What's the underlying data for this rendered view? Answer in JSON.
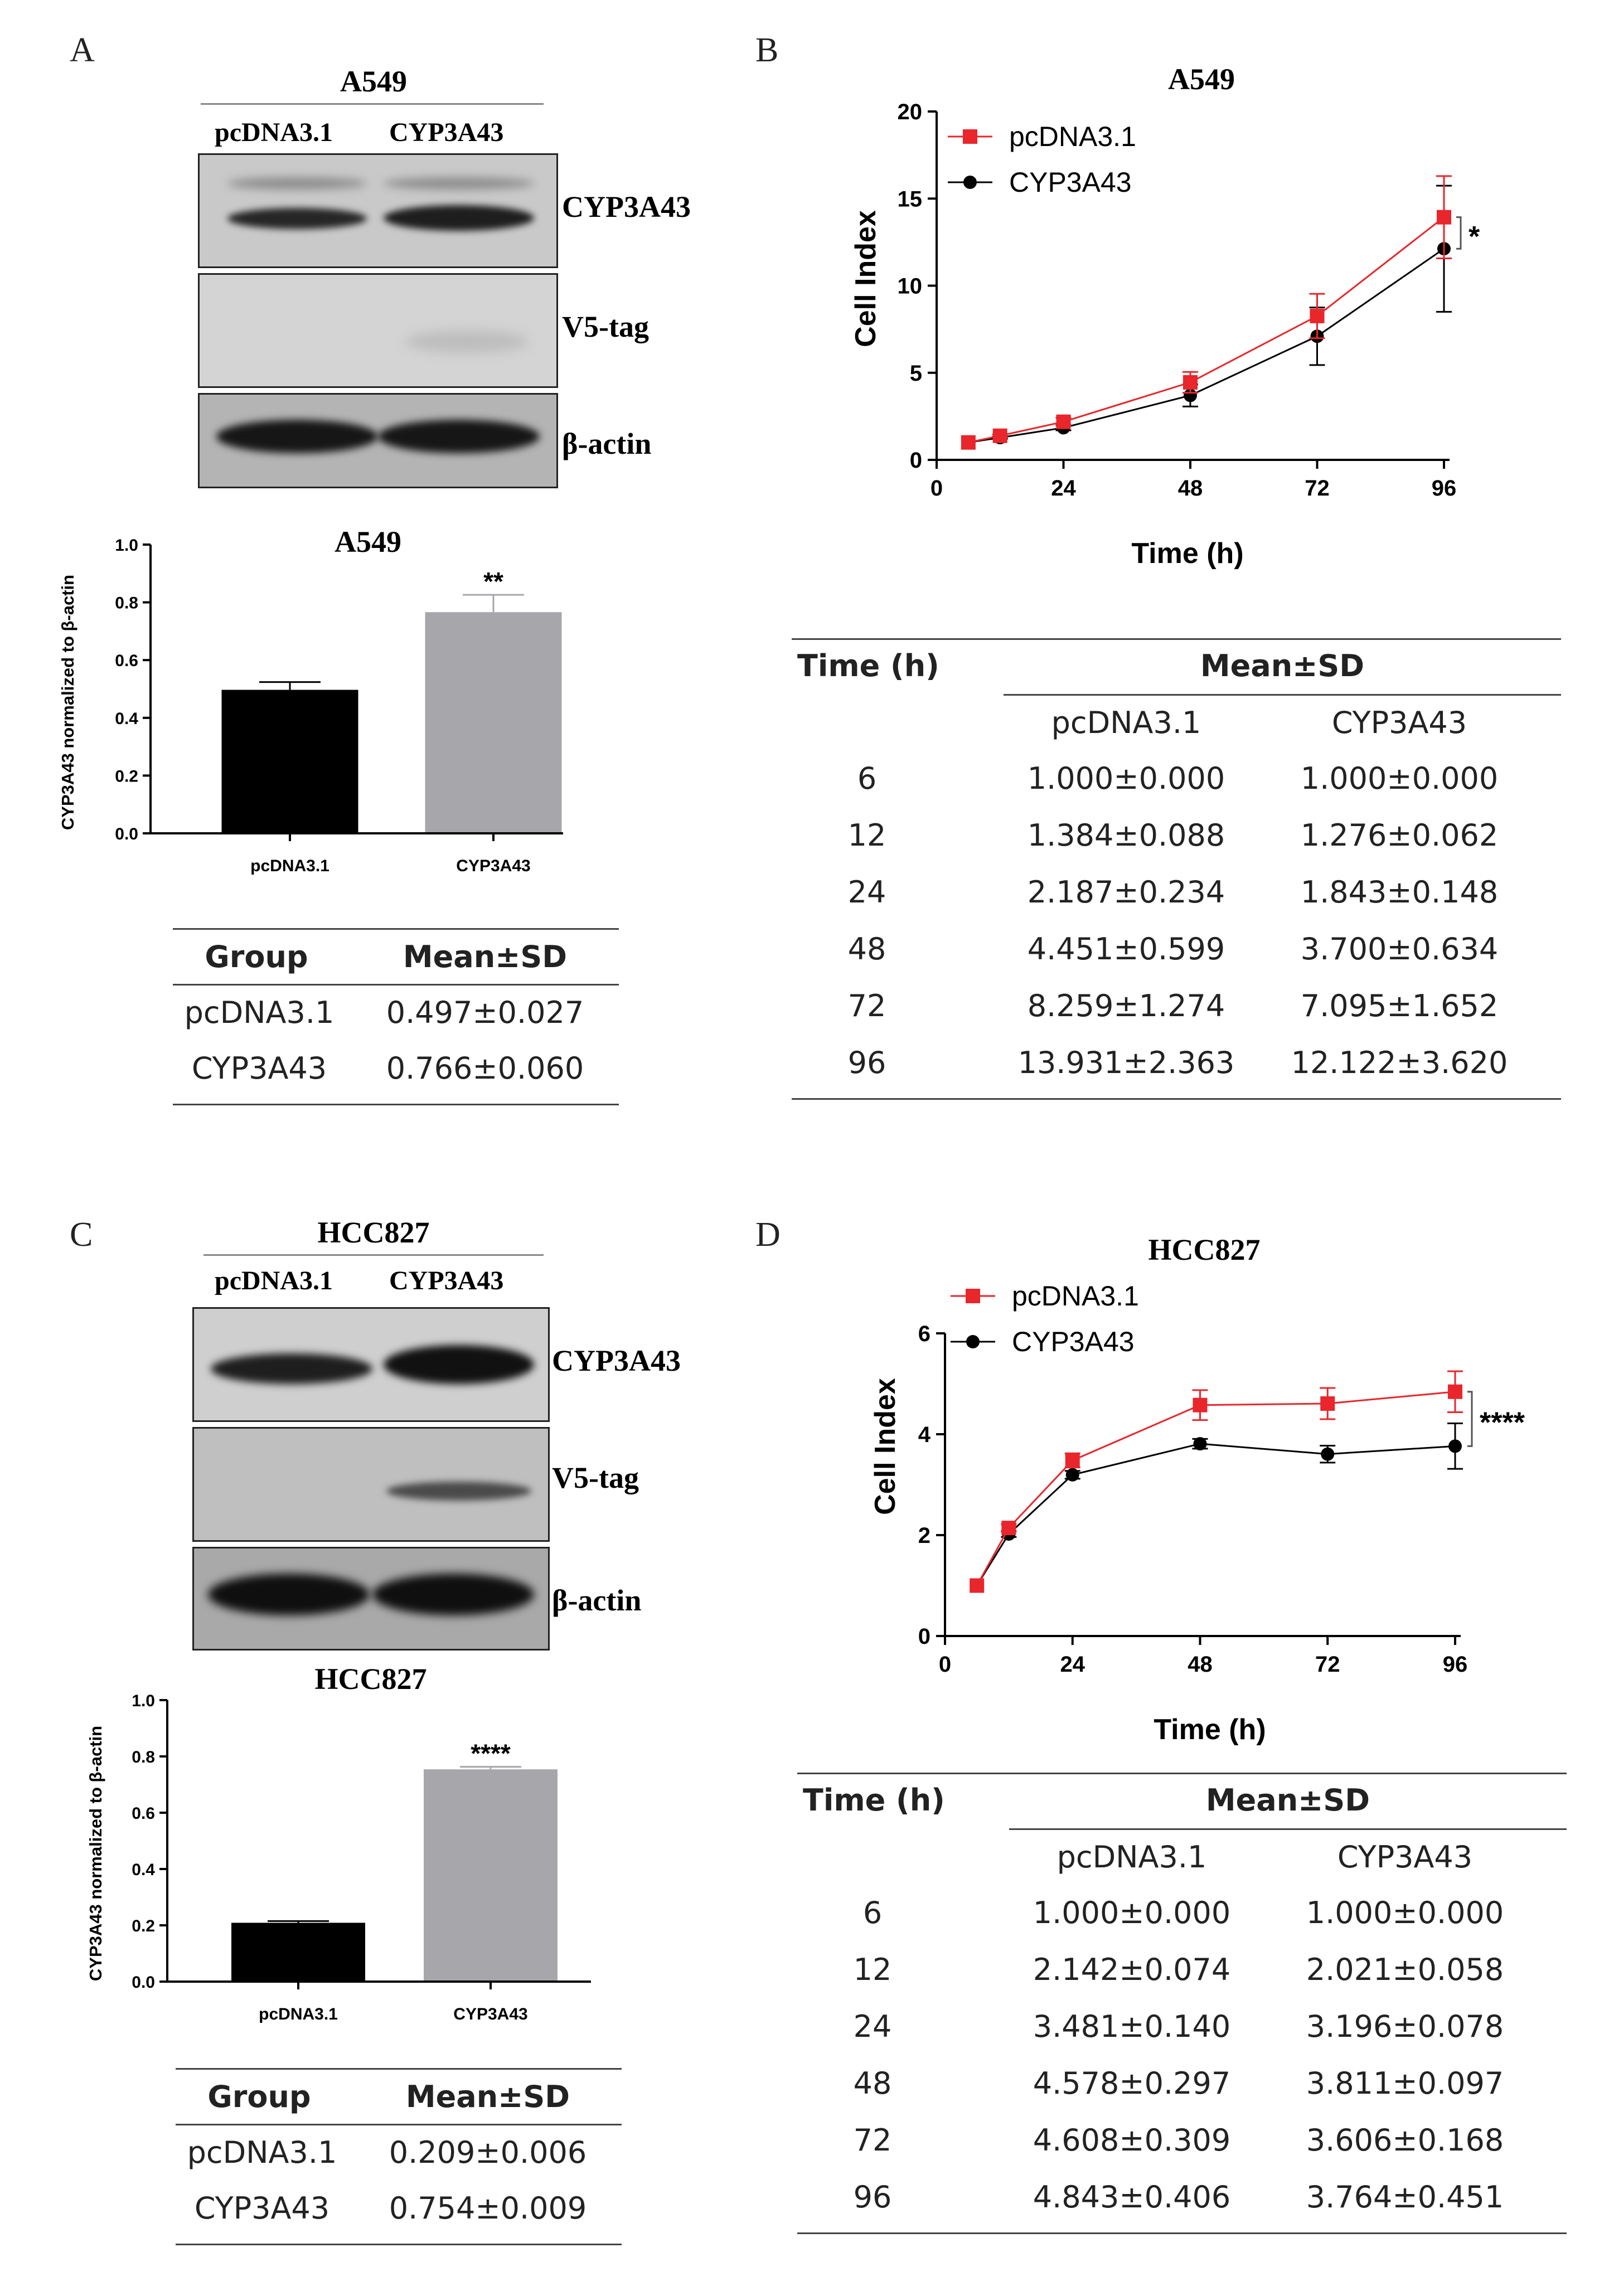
{
  "chart_data": [
    {
      "panel": "A",
      "type": "bar",
      "title": "A549",
      "ylabel": "CYP3A43 normalized to β-actin",
      "categories": [
        "pcDNA3.1",
        "CYP3A43"
      ],
      "values": [
        0.497,
        0.766
      ],
      "errors": [
        0.027,
        0.06
      ],
      "colors": [
        "#000000",
        "#a6a6ab"
      ],
      "ylim": [
        0,
        1.0
      ],
      "yticks": [
        "0.0",
        "0.2",
        "0.4",
        "0.6",
        "0.8",
        "1.0"
      ],
      "significance": "**",
      "blot": {
        "title": "A549",
        "lanes": [
          "pcDNA3.1",
          "CYP3A43"
        ],
        "bands": [
          "CYP3A43",
          "V5-tag",
          "β-actin"
        ]
      },
      "table": {
        "headers": [
          "Group",
          "Mean±SD"
        ],
        "rows": [
          [
            "pcDNA3.1",
            "0.497±0.027"
          ],
          [
            "CYP3A43",
            "0.766±0.060"
          ]
        ]
      }
    },
    {
      "panel": "B",
      "type": "line",
      "title": "A549",
      "xlabel": "Time (h)",
      "ylabel": "Cell Index",
      "x": [
        6,
        12,
        24,
        48,
        72,
        96
      ],
      "xticks": [
        "0",
        "24",
        "48",
        "72",
        "96"
      ],
      "yticks": [
        "0",
        "5",
        "10",
        "15",
        "20"
      ],
      "xlim": [
        0,
        96
      ],
      "ylim": [
        0,
        20
      ],
      "series": [
        {
          "name": "pcDNA3.1",
          "color": "#e8262b",
          "marker": "square",
          "values": [
            1.0,
            1.384,
            2.187,
            4.451,
            8.259,
            13.931
          ],
          "errors": [
            0.0,
            0.088,
            0.234,
            0.599,
            1.274,
            2.363
          ]
        },
        {
          "name": "CYP3A43",
          "color": "#000000",
          "marker": "circle",
          "values": [
            1.0,
            1.276,
            1.843,
            3.7,
            7.095,
            12.122
          ],
          "errors": [
            0.0,
            0.062,
            0.148,
            0.634,
            1.652,
            3.62
          ]
        }
      ],
      "significance": "*",
      "table": {
        "headers": [
          "Time (h)",
          "Mean±SD"
        ],
        "subheaders": [
          "pcDNA3.1",
          "CYP3A43"
        ],
        "rows": [
          [
            "6",
            "1.000±0.000",
            "1.000±0.000"
          ],
          [
            "12",
            "1.384±0.088",
            "1.276±0.062"
          ],
          [
            "24",
            "2.187±0.234",
            "1.843±0.148"
          ],
          [
            "48",
            "4.451±0.599",
            "3.700±0.634"
          ],
          [
            "72",
            "8.259±1.274",
            "7.095±1.652"
          ],
          [
            "96",
            "13.931±2.363",
            "12.122±3.620"
          ]
        ]
      }
    },
    {
      "panel": "C",
      "type": "bar",
      "title": "HCC827",
      "ylabel": "CYP3A43 normalized to β-actin",
      "categories": [
        "pcDNA3.1",
        "CYP3A43"
      ],
      "values": [
        0.209,
        0.754
      ],
      "errors": [
        0.006,
        0.009
      ],
      "colors": [
        "#000000",
        "#a6a6ab"
      ],
      "ylim": [
        0,
        1.0
      ],
      "yticks": [
        "0.0",
        "0.2",
        "0.4",
        "0.6",
        "0.8",
        "1.0"
      ],
      "significance": "****",
      "blot": {
        "title": "HCC827",
        "lanes": [
          "pcDNA3.1",
          "CYP3A43"
        ],
        "bands": [
          "CYP3A43",
          "V5-tag",
          "β-actin"
        ]
      },
      "table": {
        "headers": [
          "Group",
          "Mean±SD"
        ],
        "rows": [
          [
            "pcDNA3.1",
            "0.209±0.006"
          ],
          [
            "CYP3A43",
            "0.754±0.009"
          ]
        ]
      }
    },
    {
      "panel": "D",
      "type": "line",
      "title": "HCC827",
      "xlabel": "Time (h)",
      "ylabel": "Cell Index",
      "x": [
        6,
        12,
        24,
        48,
        72,
        96
      ],
      "xticks": [
        "0",
        "24",
        "48",
        "72",
        "96"
      ],
      "yticks": [
        "0",
        "2",
        "4",
        "6"
      ],
      "xlim": [
        0,
        96
      ],
      "ylim": [
        0,
        6
      ],
      "series": [
        {
          "name": "pcDNA3.1",
          "color": "#e8262b",
          "marker": "square",
          "values": [
            1.0,
            2.142,
            3.481,
            4.578,
            4.608,
            4.843
          ],
          "errors": [
            0.0,
            0.074,
            0.14,
            0.297,
            0.309,
            0.406
          ]
        },
        {
          "name": "CYP3A43",
          "color": "#000000",
          "marker": "circle",
          "values": [
            1.0,
            2.021,
            3.196,
            3.811,
            3.606,
            3.764
          ],
          "errors": [
            0.0,
            0.058,
            0.078,
            0.097,
            0.168,
            0.451
          ]
        }
      ],
      "significance": "****",
      "table": {
        "headers": [
          "Time (h)",
          "Mean±SD"
        ],
        "subheaders": [
          "pcDNA3.1",
          "CYP3A43"
        ],
        "rows": [
          [
            "6",
            "1.000±0.000",
            "1.000±0.000"
          ],
          [
            "12",
            "2.142±0.074",
            "2.021±0.058"
          ],
          [
            "24",
            "3.481±0.140",
            "3.196±0.078"
          ],
          [
            "48",
            "4.578±0.297",
            "3.811±0.097"
          ],
          [
            "72",
            "4.608±0.309",
            "3.606±0.168"
          ],
          [
            "96",
            "4.843±0.406",
            "3.764±0.451"
          ]
        ]
      }
    }
  ]
}
